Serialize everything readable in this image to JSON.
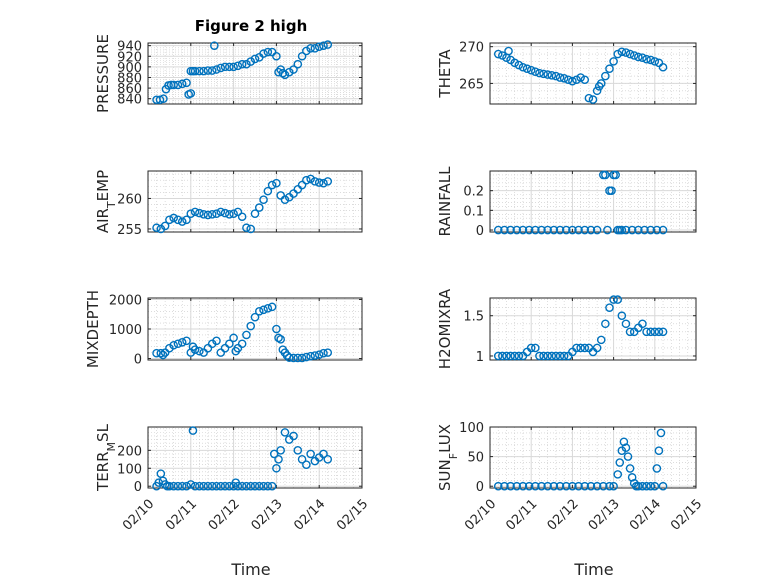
{
  "figure": {
    "title": "Figure 2 high"
  },
  "colors": {
    "marker": "#0072BD",
    "axis": "#262626",
    "grid": "#d9d9d9",
    "grid_minor": "#c8c8c8"
  },
  "chart_data": [
    {
      "id": "pressure",
      "type": "scatter",
      "ylabel": "PRESSURE",
      "title": "Figure 2 high",
      "xlim": [
        0,
        5
      ],
      "ylim": [
        830,
        945
      ],
      "yticks": [
        840,
        860,
        880,
        900,
        920,
        940
      ],
      "ytick_labels": [
        "840",
        "860",
        "880",
        "900",
        "920",
        "940"
      ],
      "x": [
        0.2,
        0.28,
        0.36,
        0.42,
        0.48,
        0.54,
        0.6,
        0.7,
        0.8,
        0.9,
        0.95,
        1.0,
        1.05,
        1.1,
        1.2,
        1.3,
        1.4,
        1.5,
        1.6,
        1.7,
        1.8,
        1.9,
        2.0,
        2.1,
        2.2,
        2.3,
        2.4,
        2.5,
        2.6,
        2.7,
        2.8,
        2.9,
        3.0,
        3.05,
        3.1,
        3.15,
        3.2,
        3.3,
        3.4,
        3.5,
        3.6,
        3.7,
        3.8,
        3.9,
        4.0,
        4.1,
        4.2,
        1.0,
        1.55
      ],
      "y": [
        838,
        838,
        840,
        858,
        865,
        866,
        866,
        866,
        868,
        870,
        848,
        892,
        892,
        892,
        892,
        892,
        893,
        893,
        895,
        898,
        900,
        900,
        900,
        902,
        905,
        905,
        910,
        915,
        918,
        925,
        928,
        928,
        920,
        890,
        895,
        888,
        885,
        890,
        895,
        905,
        920,
        930,
        935,
        935,
        938,
        940,
        942,
        850,
        940
      ]
    },
    {
      "id": "theta",
      "type": "scatter",
      "ylabel": "THETA",
      "xlim": [
        0,
        5
      ],
      "ylim": [
        262.2,
        270.5
      ],
      "yticks": [
        265,
        270
      ],
      "ytick_labels": [
        "265",
        "270"
      ],
      "x": [
        0.2,
        0.3,
        0.4,
        0.5,
        0.6,
        0.7,
        0.8,
        0.9,
        1.0,
        1.1,
        1.2,
        1.3,
        1.4,
        1.5,
        1.6,
        1.7,
        1.8,
        1.9,
        2.0,
        2.1,
        2.2,
        2.3,
        2.4,
        2.5,
        2.6,
        2.65,
        2.7,
        2.8,
        2.9,
        3.0,
        3.1,
        3.2,
        3.3,
        3.4,
        3.5,
        3.6,
        3.7,
        3.8,
        3.9,
        4.0,
        4.1,
        4.2,
        0.45
      ],
      "y": [
        269,
        268.8,
        268.5,
        268.2,
        267.8,
        267.5,
        267.2,
        267,
        266.8,
        266.6,
        266.4,
        266.3,
        266.2,
        266.1,
        266,
        265.8,
        265.7,
        265.5,
        265.3,
        265.5,
        265.8,
        265.5,
        263,
        262.8,
        264,
        264.6,
        265,
        266,
        267,
        268,
        269,
        269.3,
        269.2,
        269,
        268.8,
        268.6,
        268.5,
        268.3,
        268.2,
        268,
        267.8,
        267.2,
        269.4
      ]
    },
    {
      "id": "air_temp",
      "type": "scatter",
      "ylabel_main": "AIR",
      "ylabel_sub": "T",
      "ylabel_tail": "EMP",
      "xlim": [
        0,
        5
      ],
      "ylim": [
        254.5,
        264.5
      ],
      "yticks": [
        255,
        260
      ],
      "ytick_labels": [
        "255",
        "260"
      ],
      "x": [
        0.2,
        0.3,
        0.4,
        0.5,
        0.6,
        0.7,
        0.8,
        0.9,
        1.0,
        1.1,
        1.2,
        1.3,
        1.4,
        1.5,
        1.6,
        1.7,
        1.8,
        1.9,
        2.0,
        2.1,
        2.2,
        2.3,
        2.4,
        2.5,
        2.6,
        2.7,
        2.8,
        2.9,
        3.0,
        3.1,
        3.2,
        3.3,
        3.4,
        3.5,
        3.6,
        3.7,
        3.8,
        3.9,
        4.0,
        4.1,
        4.2
      ],
      "y": [
        255.2,
        255,
        255.5,
        256.5,
        256.8,
        256.5,
        256.2,
        256.5,
        257.5,
        257.8,
        257.6,
        257.4,
        257.3,
        257.4,
        257.5,
        257.8,
        257.6,
        257.4,
        257.5,
        257.8,
        257,
        255.2,
        255,
        257.5,
        258.5,
        259.8,
        261.2,
        262.2,
        262.5,
        260.5,
        259.8,
        260.2,
        260.8,
        261.5,
        262.2,
        263,
        263.2,
        262.8,
        262.6,
        262.5,
        262.8
      ]
    },
    {
      "id": "rainfall",
      "type": "scatter",
      "ylabel": "RAINFALL",
      "xlim": [
        0,
        5
      ],
      "ylim": [
        -0.01,
        0.3
      ],
      "yticks": [
        0,
        0.1,
        0.2
      ],
      "ytick_labels": [
        "0",
        "0.1",
        "0.2"
      ],
      "x": [
        0.2,
        0.35,
        0.5,
        0.65,
        0.8,
        0.95,
        1.1,
        1.25,
        1.4,
        1.55,
        1.7,
        1.85,
        2.0,
        2.15,
        2.3,
        2.45,
        2.6,
        2.75,
        2.8,
        2.85,
        2.9,
        2.95,
        3.0,
        3.05,
        3.1,
        3.15,
        3.2,
        3.3,
        3.45,
        3.6,
        3.75,
        3.9,
        4.05,
        4.2
      ],
      "y": [
        0,
        0,
        0,
        0,
        0,
        0,
        0,
        0,
        0,
        0,
        0,
        0,
        0,
        0,
        0,
        0,
        0,
        0.28,
        0.28,
        0,
        0.2,
        0.2,
        0.28,
        0.28,
        0,
        0,
        0,
        0,
        0,
        0,
        0,
        0,
        0,
        0
      ]
    },
    {
      "id": "mixdepth",
      "type": "scatter",
      "ylabel": "MIXDEPTH",
      "xlim": [
        0,
        5
      ],
      "ylim": [
        -50,
        2050
      ],
      "yticks": [
        0,
        1000,
        2000
      ],
      "ytick_labels": [
        "0",
        "1000",
        "2000"
      ],
      "x": [
        0.2,
        0.3,
        0.35,
        0.4,
        0.5,
        0.6,
        0.7,
        0.8,
        0.9,
        1.0,
        1.05,
        1.1,
        1.2,
        1.3,
        1.4,
        1.5,
        1.6,
        1.7,
        1.8,
        1.9,
        2.0,
        2.05,
        2.1,
        2.2,
        2.3,
        2.4,
        2.5,
        2.6,
        2.7,
        2.8,
        2.9,
        3.0,
        3.05,
        3.1,
        3.15,
        3.2,
        3.25,
        3.3,
        3.4,
        3.5,
        3.6,
        3.7,
        3.8,
        3.9,
        4.0,
        4.1,
        4.2
      ],
      "y": [
        180,
        180,
        120,
        200,
        350,
        450,
        500,
        550,
        600,
        200,
        400,
        300,
        250,
        200,
        350,
        500,
        600,
        200,
        350,
        500,
        700,
        250,
        350,
        500,
        800,
        1100,
        1400,
        1600,
        1650,
        1700,
        1750,
        1000,
        700,
        650,
        300,
        200,
        100,
        30,
        20,
        20,
        20,
        50,
        80,
        100,
        130,
        180,
        200
      ]
    },
    {
      "id": "h2omixra",
      "type": "scatter",
      "ylabel": "H2OMIXRA",
      "xlim": [
        0,
        5
      ],
      "ylim": [
        0.95,
        1.72
      ],
      "yticks": [
        1,
        1.5
      ],
      "ytick_labels": [
        "1",
        "1.5"
      ],
      "x": [
        0.2,
        0.3,
        0.4,
        0.5,
        0.6,
        0.7,
        0.8,
        0.9,
        1.0,
        1.1,
        1.2,
        1.3,
        1.4,
        1.5,
        1.6,
        1.7,
        1.8,
        1.9,
        2.0,
        2.1,
        2.2,
        2.3,
        2.4,
        2.5,
        2.6,
        2.7,
        2.8,
        2.9,
        3.0,
        3.1,
        3.2,
        3.3,
        3.4,
        3.5,
        3.6,
        3.7,
        3.8,
        3.9,
        4.0,
        4.1,
        4.2
      ],
      "y": [
        1,
        1,
        1,
        1,
        1,
        1,
        1,
        1.05,
        1.1,
        1.1,
        1,
        1,
        1,
        1,
        1,
        1,
        1,
        1,
        1.05,
        1.1,
        1.1,
        1.1,
        1.1,
        1.05,
        1.1,
        1.2,
        1.4,
        1.6,
        1.7,
        1.7,
        1.5,
        1.4,
        1.3,
        1.3,
        1.35,
        1.4,
        1.3,
        1.3,
        1.3,
        1.3,
        1.3
      ]
    },
    {
      "id": "terr_msl",
      "type": "scatter",
      "ylabel_main": "TERR",
      "ylabel_sub": "M",
      "ylabel_tail": "SL",
      "xlim": [
        0,
        5
      ],
      "ylim": [
        -10,
        330
      ],
      "yticks": [
        0,
        100,
        200
      ],
      "ytick_labels": [
        "0",
        "100",
        "200"
      ],
      "x": [
        0.2,
        0.25,
        0.3,
        0.35,
        0.4,
        0.45,
        0.5,
        0.6,
        0.7,
        0.8,
        0.9,
        1.0,
        1.1,
        1.2,
        1.3,
        1.4,
        1.5,
        1.6,
        1.7,
        1.8,
        1.9,
        2.0,
        2.1,
        2.2,
        2.3,
        2.4,
        2.5,
        2.6,
        2.7,
        2.8,
        2.9,
        2.95,
        3.0,
        3.05,
        3.1,
        3.2,
        3.3,
        3.4,
        3.5,
        3.6,
        3.7,
        3.8,
        3.9,
        4.0,
        4.1,
        4.2,
        1.05,
        2.05
      ],
      "y": [
        0,
        20,
        70,
        30,
        10,
        0,
        0,
        0,
        0,
        0,
        0,
        10,
        0,
        0,
        0,
        0,
        0,
        0,
        0,
        0,
        0,
        0,
        0,
        0,
        0,
        0,
        0,
        0,
        0,
        0,
        0,
        180,
        100,
        150,
        200,
        300,
        260,
        280,
        200,
        150,
        120,
        180,
        140,
        160,
        180,
        150,
        310,
        20
      ]
    },
    {
      "id": "sun_flux",
      "type": "scatter",
      "ylabel_main": "SUN",
      "ylabel_sub": "F",
      "ylabel_tail": "LUX",
      "xlim": [
        0,
        5
      ],
      "ylim": [
        -3,
        100
      ],
      "yticks": [
        0,
        50,
        100
      ],
      "ytick_labels": [
        "0",
        "50",
        "100"
      ],
      "x": [
        0.2,
        0.35,
        0.5,
        0.65,
        0.8,
        0.95,
        1.1,
        1.25,
        1.4,
        1.55,
        1.7,
        1.85,
        2.0,
        2.15,
        2.3,
        2.45,
        2.6,
        2.75,
        2.9,
        3.0,
        3.1,
        3.15,
        3.2,
        3.25,
        3.3,
        3.35,
        3.4,
        3.45,
        3.5,
        3.55,
        3.6,
        3.7,
        3.8,
        3.9,
        4.0,
        4.05,
        4.1,
        4.15,
        4.2
      ],
      "y": [
        0,
        0,
        0,
        0,
        0,
        0,
        0,
        0,
        0,
        0,
        0,
        0,
        0,
        0,
        0,
        0,
        0,
        0,
        0,
        0,
        20,
        40,
        60,
        75,
        65,
        50,
        30,
        15,
        5,
        0,
        0,
        0,
        0,
        0,
        0,
        30,
        60,
        90,
        0
      ]
    }
  ],
  "x_axis": {
    "label": "Time",
    "ticks": [
      0,
      1,
      2,
      3,
      4,
      5
    ],
    "tick_labels": [
      "02/10",
      "02/11",
      "02/12",
      "02/13",
      "02/14",
      "02/15"
    ]
  }
}
